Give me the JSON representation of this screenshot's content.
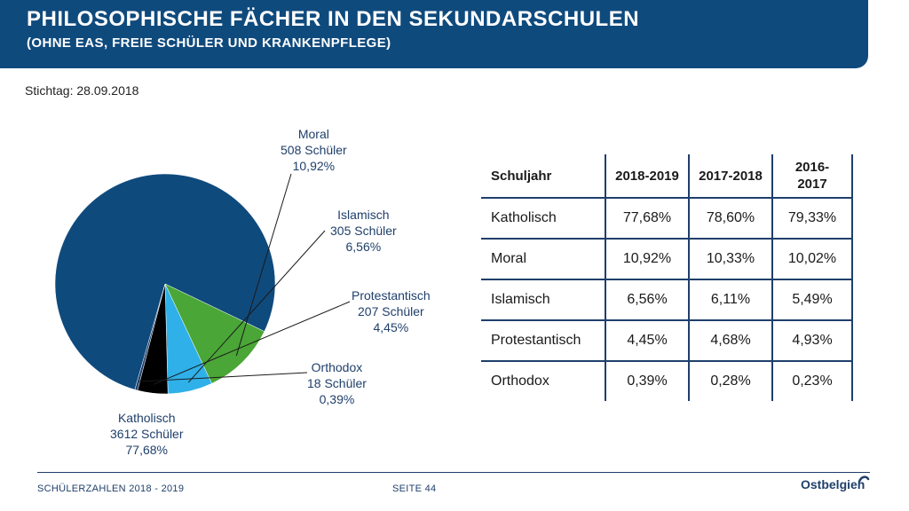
{
  "header": {
    "title": "PHILOSOPHISCHE FÄCHER IN DEN SEKUNDARSCHULEN",
    "subtitle": "(OHNE EAS, FREIE SCHÜLER UND KRANKENPFLEGE)"
  },
  "stichtag": "Stichtag: 28.09.2018",
  "chart_data": {
    "type": "pie",
    "title": "",
    "slices": [
      {
        "name": "Katholisch",
        "count": "3612 Schüler",
        "percent_label": "77,68%",
        "value": 77.68,
        "color": "#0f4a7d"
      },
      {
        "name": "Moral",
        "count": "508 Schüler",
        "percent_label": "10,92%",
        "value": 10.92,
        "color": "#4aa636"
      },
      {
        "name": "Islamisch",
        "count": "305 Schüler",
        "percent_label": "6,56%",
        "value": 6.56,
        "color": "#2fb0e8"
      },
      {
        "name": "Protestantisch",
        "count": "207 Schüler",
        "percent_label": "4,45%",
        "value": 4.45,
        "color": "#000000"
      },
      {
        "name": "Orthodox",
        "count": "18 Schüler",
        "percent_label": "0,39%",
        "value": 0.39,
        "color": "#1f3f6b"
      }
    ]
  },
  "table": {
    "headers": [
      "Schuljahr",
      "2018-2019",
      "2017-2018",
      "2016-\n2017"
    ],
    "rows": [
      [
        "Katholisch",
        "77,68%",
        "78,60%",
        "79,33%"
      ],
      [
        "Moral",
        "10,92%",
        "10,33%",
        "10,02%"
      ],
      [
        "Islamisch",
        "6,56%",
        "6,11%",
        "5,49%"
      ],
      [
        "Protestantisch",
        "4,45%",
        "4,68%",
        "4,93%"
      ],
      [
        "Orthodox",
        "0,39%",
        "0,28%",
        "0,23%"
      ]
    ]
  },
  "footer": {
    "left": "SCHÜLERZAHLEN 2018 - 2019",
    "page": "SEITE 44",
    "logo": "Ostbelgien"
  }
}
